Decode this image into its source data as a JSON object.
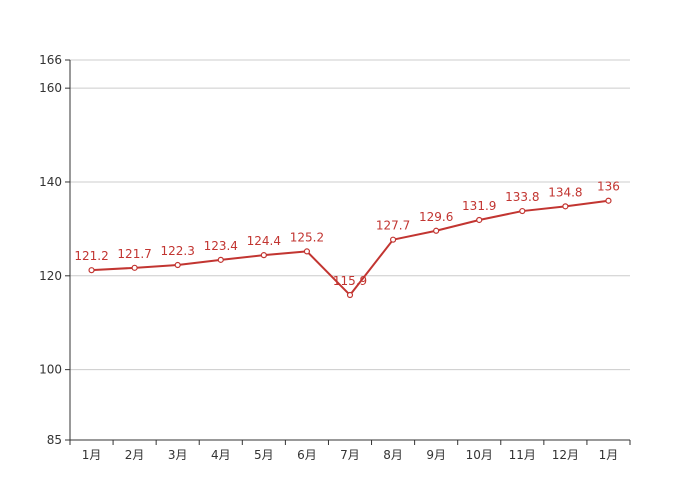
{
  "chart_data": {
    "type": "line",
    "categories": [
      "1月",
      "2月",
      "3月",
      "4月",
      "5月",
      "6月",
      "7月",
      "8月",
      "9月",
      "10月",
      "11月",
      "12月",
      "1月"
    ],
    "series": [
      {
        "values": [
          121.2,
          121.7,
          122.3,
          123.4,
          124.4,
          125.2,
          115.9,
          127.7,
          129.6,
          131.9,
          133.8,
          134.8,
          136
        ],
        "labels": [
          "121.2",
          "121.7",
          "122.3",
          "123.4",
          "124.4",
          "125.2",
          "115.9",
          "127.7",
          "129.6",
          "131.9",
          "133.8",
          "134.8",
          "136"
        ]
      }
    ],
    "ylim": [
      85,
      166
    ],
    "yticks": [
      85,
      100,
      120,
      140,
      160,
      166
    ],
    "grid": true,
    "colors": {
      "line": "#c23531",
      "label": "#c23531",
      "grid": "#cccccc",
      "axis": "#333333"
    },
    "title": "",
    "xlabel": "",
    "ylabel": ""
  }
}
